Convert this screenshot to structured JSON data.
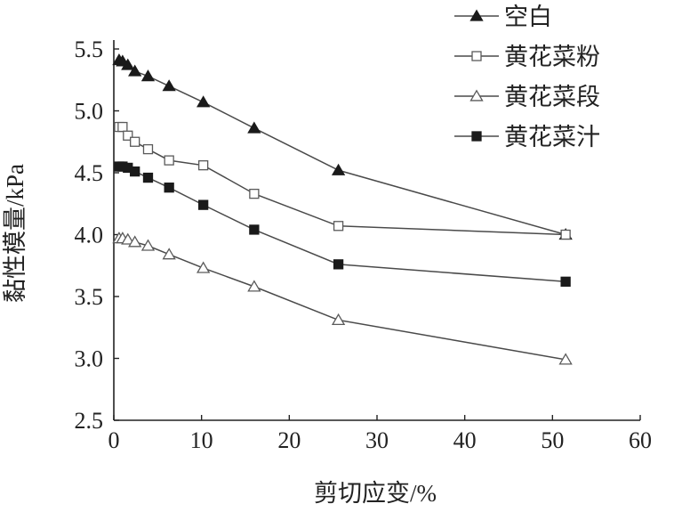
{
  "chart_data": {
    "type": "line",
    "title": "",
    "xlabel": "剪切应变/%",
    "ylabel": "黏性模量/kPa",
    "xlim": [
      0,
      60
    ],
    "ylim": [
      2.5,
      5.5
    ],
    "xticks": [
      "0",
      "10",
      "20",
      "30",
      "40",
      "50",
      "60"
    ],
    "yticks": [
      "2.5",
      "3.0",
      "3.5",
      "4.0",
      "4.5",
      "5.0",
      "5.5"
    ],
    "grid": false,
    "legend": "top-right",
    "colors": {
      "axis": "#222222",
      "line": "#4a4a4a",
      "marker": "#1a1a1a"
    },
    "series": [
      {
        "name": "空白",
        "marker": "filled-triangle",
        "x": [
          0.6,
          1.0,
          1.6,
          2.4,
          3.9,
          6.3,
          10.2,
          16.0,
          25.6,
          51.5
        ],
        "y": [
          5.41,
          5.4,
          5.37,
          5.32,
          5.28,
          5.2,
          5.07,
          4.86,
          4.52,
          4.0
        ]
      },
      {
        "name": "黄花菜粉",
        "marker": "open-square",
        "x": [
          0.6,
          1.0,
          1.6,
          2.4,
          3.9,
          6.3,
          10.2,
          16.0,
          25.6,
          51.5
        ],
        "y": [
          4.87,
          4.87,
          4.8,
          4.75,
          4.69,
          4.6,
          4.56,
          4.33,
          4.07,
          4.0
        ]
      },
      {
        "name": "黄花菜段",
        "marker": "open-triangle",
        "x": [
          0.6,
          1.0,
          1.6,
          2.4,
          3.9,
          6.3,
          10.2,
          16.0,
          25.6,
          51.5
        ],
        "y": [
          3.97,
          3.97,
          3.96,
          3.94,
          3.91,
          3.84,
          3.73,
          3.58,
          3.31,
          2.99
        ]
      },
      {
        "name": "黄花菜汁",
        "marker": "filled-square",
        "x": [
          0.6,
          1.0,
          1.6,
          2.4,
          3.9,
          6.3,
          10.2,
          16.0,
          25.6,
          51.5
        ],
        "y": [
          4.55,
          4.55,
          4.54,
          4.51,
          4.46,
          4.38,
          4.24,
          4.04,
          3.76,
          3.62
        ]
      }
    ]
  }
}
